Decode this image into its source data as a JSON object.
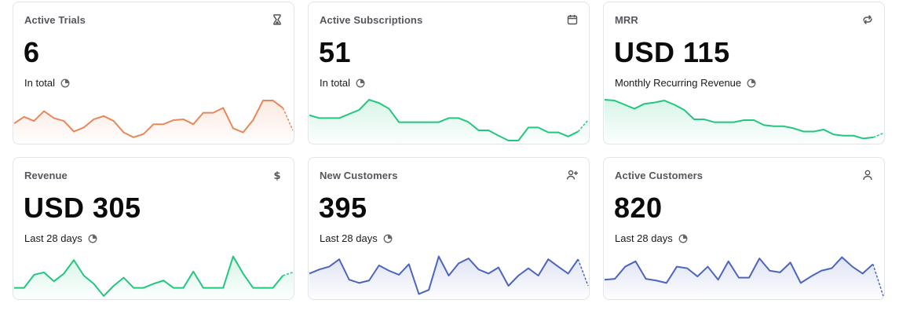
{
  "colors": {
    "orange": "#e8875a",
    "green": "#22c77e",
    "blue": "#4b64c0"
  },
  "cards": [
    {
      "title": "Active Trials",
      "value": "6",
      "subtitle": "In total",
      "icon": "hourglass-icon",
      "color": "orange",
      "series": [
        0.42,
        0.58,
        0.48,
        0.72,
        0.55,
        0.48,
        0.22,
        0.32,
        0.52,
        0.6,
        0.48,
        0.2,
        0.08,
        0.16,
        0.4,
        0.4,
        0.5,
        0.52,
        0.4,
        0.68,
        0.68,
        0.8,
        0.3,
        0.2,
        0.5,
        0.98,
        0.98,
        0.8
      ],
      "projection": [
        0.8,
        0.25
      ]
    },
    {
      "title": "Active Subscriptions",
      "value": "51",
      "subtitle": "In total",
      "icon": "calendar-icon",
      "color": "green",
      "series": [
        0.62,
        0.55,
        0.55,
        0.55,
        0.65,
        0.75,
        1.0,
        0.92,
        0.78,
        0.45,
        0.45,
        0.45,
        0.45,
        0.45,
        0.55,
        0.55,
        0.45,
        0.25,
        0.25,
        0.12,
        0.0,
        0.0,
        0.32,
        0.32,
        0.2,
        0.2,
        0.1,
        0.22
      ],
      "projection": [
        0.22,
        0.5
      ]
    },
    {
      "title": "MRR",
      "value": "USD 115",
      "subtitle": "Monthly Recurring Revenue",
      "icon": "recurring-icon",
      "color": "green",
      "series": [
        1.0,
        0.98,
        0.88,
        0.78,
        0.9,
        0.93,
        0.98,
        0.88,
        0.75,
        0.52,
        0.52,
        0.45,
        0.45,
        0.45,
        0.5,
        0.5,
        0.38,
        0.35,
        0.35,
        0.3,
        0.22,
        0.22,
        0.27,
        0.15,
        0.12,
        0.12,
        0.05,
        0.08
      ],
      "projection": [
        0.08,
        0.18
      ]
    },
    {
      "title": "Revenue",
      "value": "USD 305",
      "subtitle": "Last 28 days",
      "icon": "dollar-icon",
      "color": "green",
      "series": [
        0.2,
        0.2,
        0.52,
        0.58,
        0.36,
        0.55,
        0.88,
        0.5,
        0.3,
        0.0,
        0.25,
        0.45,
        0.2,
        0.2,
        0.3,
        0.38,
        0.2,
        0.2,
        0.6,
        0.2,
        0.2,
        0.2,
        0.97,
        0.55,
        0.2,
        0.2,
        0.2,
        0.5
      ],
      "projection": [
        0.5,
        0.58
      ]
    },
    {
      "title": "New Customers",
      "value": "395",
      "subtitle": "Last 28 days",
      "icon": "add-person-icon",
      "color": "blue",
      "series": [
        0.55,
        0.65,
        0.72,
        0.9,
        0.4,
        0.32,
        0.38,
        0.75,
        0.62,
        0.52,
        0.78,
        0.05,
        0.15,
        0.97,
        0.5,
        0.8,
        0.92,
        0.65,
        0.55,
        0.7,
        0.25,
        0.5,
        0.68,
        0.5,
        0.9,
        0.72,
        0.55,
        0.9
      ],
      "projection": [
        0.9,
        0.25
      ]
    },
    {
      "title": "Active Customers",
      "value": "820",
      "subtitle": "Last 28 days",
      "icon": "person-icon",
      "color": "blue",
      "series": [
        0.4,
        0.42,
        0.72,
        0.85,
        0.42,
        0.38,
        0.32,
        0.72,
        0.68,
        0.48,
        0.72,
        0.4,
        0.85,
        0.45,
        0.45,
        0.92,
        0.62,
        0.58,
        0.82,
        0.32,
        0.48,
        0.62,
        0.68,
        0.95,
        0.72,
        0.55,
        0.78
      ],
      "projection": [
        0.78,
        0.0
      ]
    }
  ]
}
